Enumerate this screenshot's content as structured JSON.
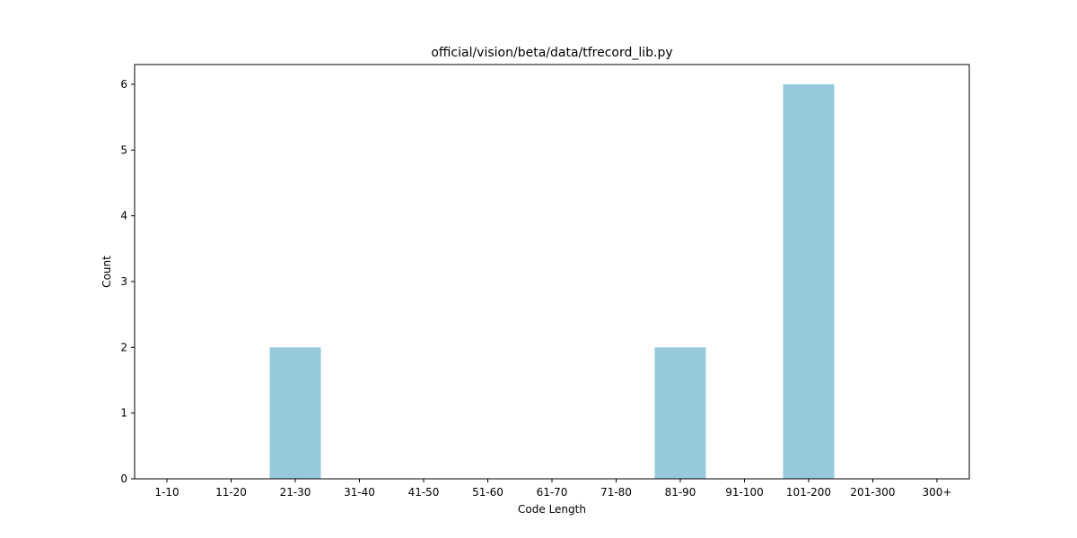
{
  "chart_data": {
    "type": "bar",
    "title": "official/vision/beta/data/tfrecord_lib.py",
    "xlabel": "Code Length",
    "ylabel": "Count",
    "categories": [
      "1-10",
      "11-20",
      "21-30",
      "31-40",
      "41-50",
      "51-60",
      "61-70",
      "71-80",
      "81-90",
      "91-100",
      "101-200",
      "201-300",
      "300+"
    ],
    "values": [
      0,
      0,
      2,
      0,
      0,
      0,
      0,
      0,
      2,
      0,
      6,
      0,
      0
    ],
    "ylim": [
      0,
      6.3
    ],
    "yticks": [
      0,
      1,
      2,
      3,
      4,
      5,
      6
    ],
    "bar_color": "#96c9dc",
    "grid": false,
    "legend": false
  }
}
